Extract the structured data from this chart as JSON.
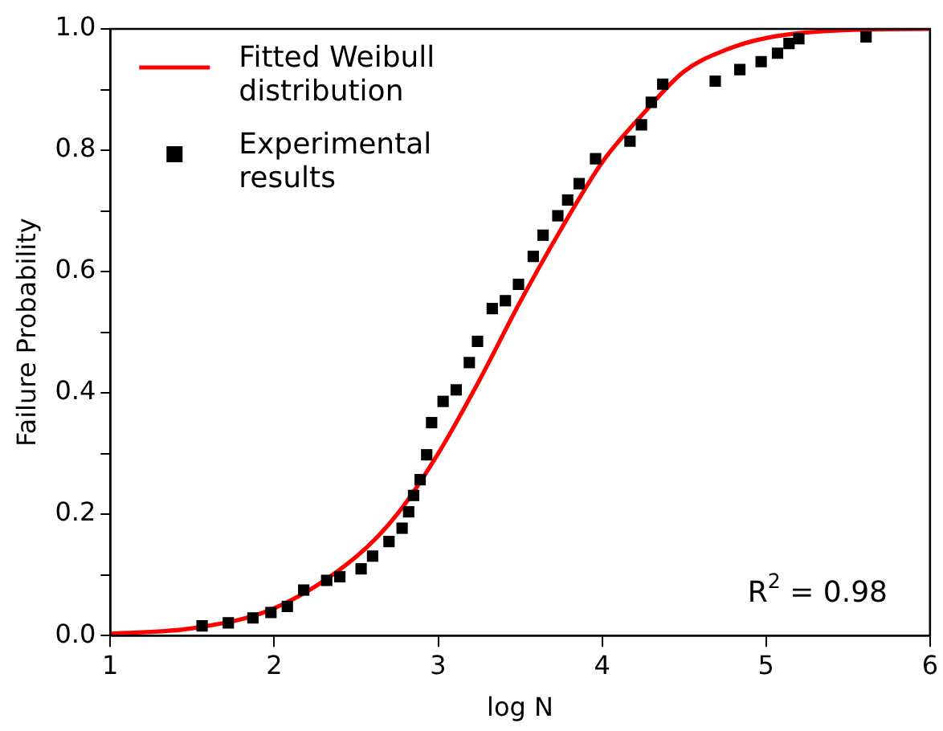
{
  "chart_data": {
    "type": "scatter",
    "xlabel": "log N",
    "ylabel": "Failure Probability",
    "xlim": [
      1,
      6
    ],
    "xticks": [
      1,
      2,
      3,
      4,
      5,
      6
    ],
    "ylim": [
      0,
      1
    ],
    "yticks": [
      {
        "value": 0,
        "label": "0.0"
      },
      {
        "value": 0.1,
        "label": null
      },
      {
        "value": 0.2,
        "label": "0.2"
      },
      {
        "value": 0.3,
        "label": null
      },
      {
        "value": 0.4,
        "label": "0.4"
      },
      {
        "value": 0.5,
        "label": null
      },
      {
        "value": 0.6,
        "label": "0.6"
      },
      {
        "value": 0.7,
        "label": null
      },
      {
        "value": 0.8,
        "label": "0.8"
      },
      {
        "value": 0.9,
        "label": null
      },
      {
        "value": 1,
        "label": "1.0"
      }
    ],
    "grid": false,
    "legend": "top left",
    "annotations": [
      "R$^{2}$ = 0.98"
    ],
    "series": [
      {
        "name": "Fitted Weibull distribution",
        "type": "line",
        "color": "#ff0000",
        "line_style": "solid",
        "marker": "none",
        "x": [
          1,
          1.5,
          2,
          2.5,
          2.75,
          3,
          3.25,
          3.5,
          3.75,
          4,
          4.25,
          4.5,
          4.75,
          5,
          5.5,
          6
        ],
        "values": [
          0.003,
          0.012,
          0.045,
          0.13,
          0.2,
          0.3,
          0.42,
          0.55,
          0.67,
          0.78,
          0.86,
          0.93,
          0.965,
          0.985,
          0.998,
          1.0
        ]
      },
      {
        "name": "Experimental results",
        "color": "#000000",
        "marker": "square",
        "x": [
          1.56,
          1.72,
          1.87,
          1.98,
          2.08,
          2.18,
          2.32,
          2.4,
          2.53,
          2.6,
          2.7,
          2.78,
          2.82,
          2.85,
          2.89,
          2.93,
          2.96,
          3.03,
          3.11,
          3.19,
          3.24,
          3.33,
          3.41,
          3.49,
          3.58,
          3.64,
          3.73,
          3.79,
          3.86,
          3.96,
          4.17,
          4.24,
          4.3,
          4.37,
          4.69,
          4.84,
          4.97,
          5.07,
          5.14,
          5.2,
          5.61
        ],
        "values": [
          0.016,
          0.021,
          0.029,
          0.038,
          0.048,
          0.075,
          0.091,
          0.097,
          0.11,
          0.131,
          0.155,
          0.177,
          0.204,
          0.231,
          0.257,
          0.298,
          0.351,
          0.386,
          0.405,
          0.45,
          0.485,
          0.539,
          0.552,
          0.579,
          0.625,
          0.66,
          0.692,
          0.718,
          0.745,
          0.786,
          0.815,
          0.842,
          0.879,
          0.909,
          0.914,
          0.933,
          0.946,
          0.96,
          0.976,
          0.984,
          0.987
        ]
      }
    ]
  }
}
